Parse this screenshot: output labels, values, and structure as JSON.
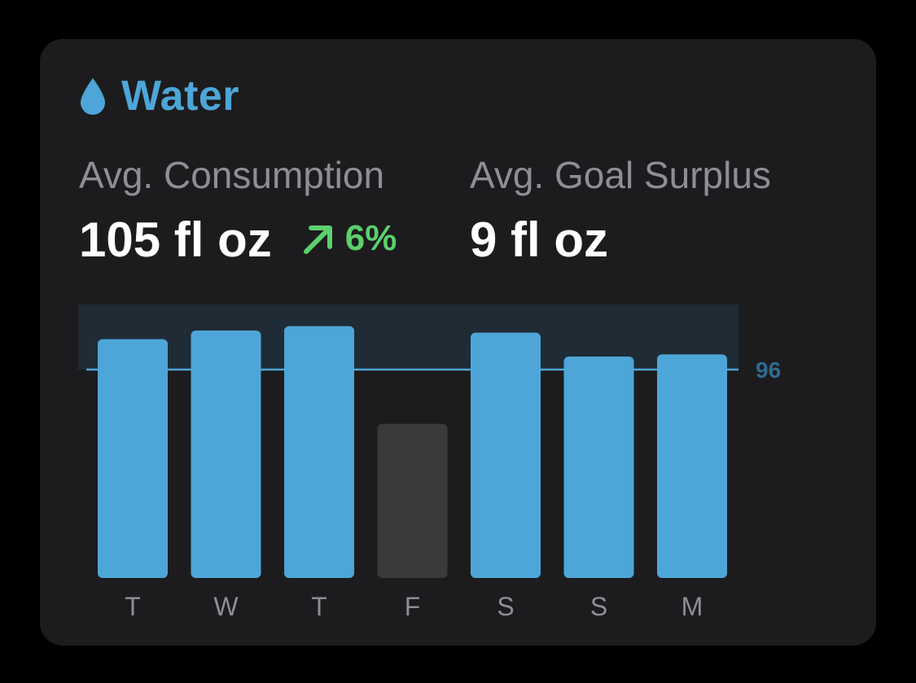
{
  "header": {
    "icon": "water-drop-icon",
    "title": "Water"
  },
  "stats": {
    "consumption": {
      "label": "Avg. Consumption",
      "value": "105 fl oz",
      "trend_icon": "arrow-up-right-icon",
      "trend": "6%"
    },
    "surplus": {
      "label": "Avg. Goal Surplus",
      "value": "9 fl oz"
    }
  },
  "colors": {
    "accent": "#4ea6d8",
    "bar": "#4ea6d8",
    "bar_inactive": "#3a3a3c",
    "goal_band": "#1f2b35",
    "goal_line": "#4ea6d8",
    "goal_label": "#2f6b8f",
    "trend": "#5cd06b",
    "muted": "#8e8e93"
  },
  "chart_data": {
    "type": "bar",
    "categories": [
      "T",
      "W",
      "T",
      "F",
      "S",
      "S",
      "M"
    ],
    "values": [
      110,
      114,
      116,
      71,
      113,
      102,
      103
    ],
    "highlighted": [
      true,
      true,
      true,
      false,
      true,
      true,
      true
    ],
    "goal": 96,
    "goal_label": "96",
    "ylim": [
      0,
      126
    ],
    "title": "",
    "xlabel": "",
    "ylabel": ""
  }
}
